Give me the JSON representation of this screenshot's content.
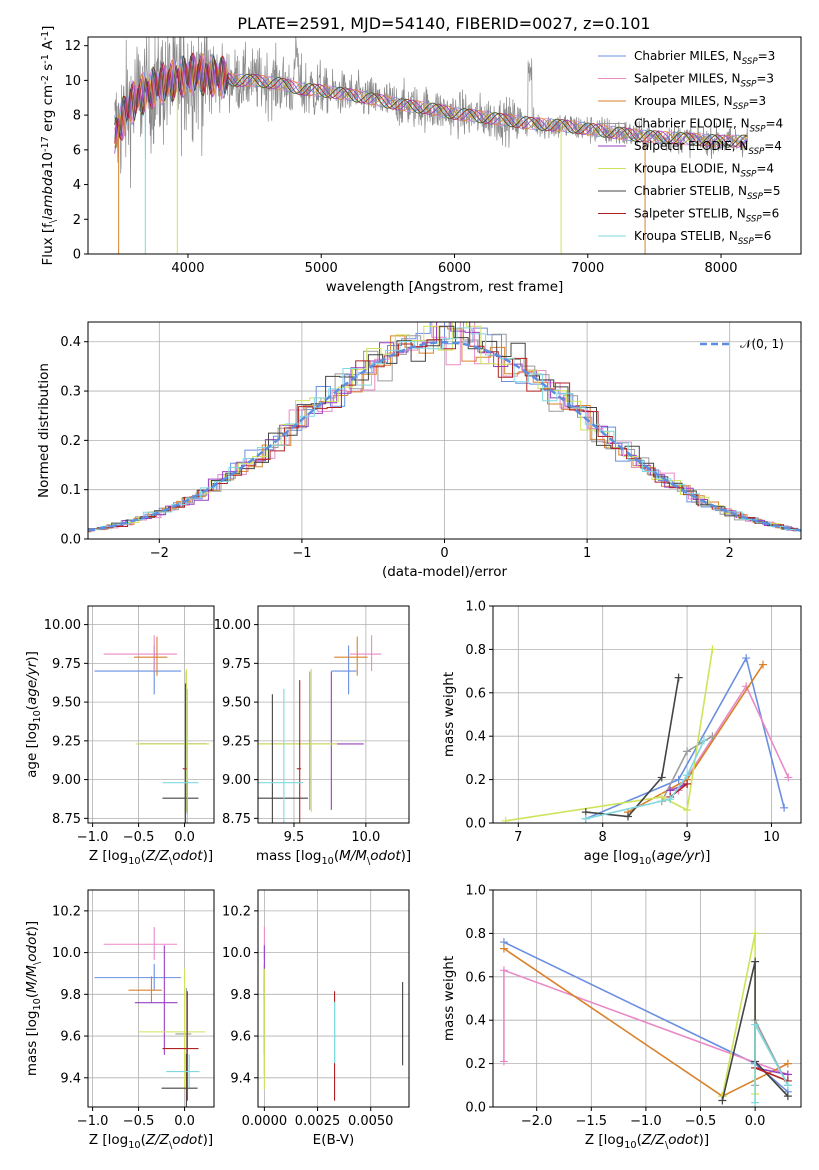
{
  "figure": {
    "title": "PLATE=2591, MJD=54140, FIBERID=0027, z=0.101",
    "series_colors": [
      "#6a8fe0",
      "#e98ac8",
      "#d9822b",
      "#9b9b9b",
      "#9a3fc4",
      "#cfe35a",
      "#444444",
      "#b22222",
      "#7fd9df"
    ]
  },
  "chart_data": [
    {
      "id": "spectrum",
      "type": "line",
      "title": "PLATE=2591, MJD=54140, FIBERID=0027, z=0.101",
      "xlabel": "wavelength [Angstrom, rest frame]",
      "ylabel": "Flux [f$_\\lambda$10$^{-17}$ erg cm$^{-2}$ s$^{-1}$ A$^{-1}$]",
      "xlim": [
        3250,
        8600
      ],
      "ylim": [
        0,
        12.5
      ],
      "xticks": [
        4000,
        5000,
        6000,
        7000,
        8000
      ],
      "yticks": [
        0,
        2,
        4,
        6,
        8,
        10,
        12
      ],
      "legend_position": "upper right",
      "continuum": {
        "x": [
          3450,
          3550,
          3650,
          3750,
          3850,
          3950,
          4050,
          4150,
          4250,
          4350,
          4500,
          4700,
          4850,
          5000,
          5200,
          5400,
          5600,
          5800,
          6000,
          6200,
          6400,
          6600,
          6800,
          7000,
          7200,
          7400,
          7600,
          7800,
          8000
        ],
        "y": [
          6.9,
          8.4,
          9.2,
          9.6,
          9.9,
          10.2,
          10.4,
          10.3,
          10.2,
          10.0,
          10.0,
          9.8,
          9.5,
          9.4,
          9.2,
          8.9,
          8.6,
          8.4,
          8.1,
          7.9,
          7.7,
          7.5,
          7.4,
          7.2,
          7.0,
          6.8,
          6.7,
          6.6,
          6.5
        ]
      },
      "series": [
        {
          "label": "Chabrier MILES, N$_{SSP}$=3"
        },
        {
          "label": "Salpeter MILES, N$_{SSP}$=3"
        },
        {
          "label": "Kroupa MILES, N$_{SSP}$=3"
        },
        {
          "label": "Chabrier ELODIE, N$_{SSP}$=4"
        },
        {
          "label": "Salpeter ELODIE, N$_{SSP}$=4"
        },
        {
          "label": "Kroupa ELODIE, N$_{SSP}$=4"
        },
        {
          "label": "Chabrier STELIB, N$_{SSP}$=5"
        },
        {
          "label": "Salpeter STELIB, N$_{SSP}$=6"
        },
        {
          "label": "Kroupa STELIB, N$_{SSP}$=6"
        }
      ]
    },
    {
      "id": "residuals",
      "type": "line",
      "xlabel": "(data-model)/error",
      "ylabel": "Normed distribution",
      "xlim": [
        -2.5,
        2.5
      ],
      "ylim": [
        0,
        0.44
      ],
      "xticks": [
        -2,
        -1,
        0,
        1,
        2
      ],
      "yticks": [
        0.0,
        0.1,
        0.2,
        0.3,
        0.4
      ],
      "grid": true,
      "legend": "$\\mathcal{N}(0,1)$",
      "legend_position": "upper right",
      "bin_width": 0.1
    },
    {
      "id": "age-vs-z",
      "type": "scatter",
      "xlabel": "Z [log$_{10}$($Z/Z_\\odot$)]",
      "ylabel": "age  [log$_{10}$($age/yr$)]",
      "xlim": [
        -1.05,
        0.32
      ],
      "ylim": [
        8.72,
        10.12
      ],
      "xticks": [
        -1.0,
        -0.5,
        0.0
      ],
      "yticks": [
        8.75,
        9.0,
        9.25,
        9.5,
        9.75,
        10.0
      ],
      "grid": true,
      "points": [
        {
          "x": -0.33,
          "y": 9.7,
          "xerr": 0.65,
          "yerr": 0.3,
          "c": 0
        },
        {
          "x": -0.33,
          "y": 9.81,
          "xerr": 0.55,
          "yerr": 0.22,
          "c": 1
        },
        {
          "x": -0.3,
          "y": 9.79,
          "xerr": 0.25,
          "yerr": 0.24,
          "c": 2
        },
        {
          "x": 0.02,
          "y": 9.23,
          "xerr": 0.5,
          "yerr": 0.85,
          "c": 3
        },
        {
          "x": 0.02,
          "y": 9.23,
          "xerr": 0.5,
          "yerr": 0.85,
          "c": 4
        },
        {
          "x": 0.02,
          "y": 9.23,
          "xerr": 0.55,
          "yerr": 0.88,
          "c": 5
        },
        {
          "x": 0.03,
          "y": 8.88,
          "xerr": 0.27,
          "yerr": 0.2,
          "c": 6
        },
        {
          "x": 0.01,
          "y": 9.07,
          "xerr": 0.03,
          "yerr": 1.0,
          "c": 7
        },
        {
          "x": 0.03,
          "y": 8.98,
          "xerr": 0.27,
          "yerr": 1.1,
          "c": 8
        }
      ]
    },
    {
      "id": "age-vs-mass",
      "type": "scatter",
      "xlabel": "mass [log$_{10}$($M/M_\\odot$)]",
      "ylabel": "",
      "xlim": [
        9.25,
        10.3
      ],
      "ylim": [
        8.72,
        10.12
      ],
      "xticks": [
        9.5,
        10.0
      ],
      "yticks": [
        8.75,
        9.0,
        9.25,
        9.5,
        9.75,
        10.0
      ],
      "grid": true,
      "points": [
        {
          "x": 9.88,
          "y": 9.7,
          "xerr": 0.12,
          "yerr": 0.3,
          "c": 0
        },
        {
          "x": 10.04,
          "y": 9.81,
          "xerr": 0.15,
          "yerr": 0.22,
          "c": 1
        },
        {
          "x": 9.94,
          "y": 9.79,
          "xerr": 0.16,
          "yerr": 0.24,
          "c": 2
        },
        {
          "x": 9.61,
          "y": 9.23,
          "xerr": 0.03,
          "yerr": 0.85,
          "c": 3
        },
        {
          "x": 9.76,
          "y": 9.23,
          "xerr": 0.5,
          "yerr": 0.85,
          "c": 4
        },
        {
          "x": 9.62,
          "y": 9.23,
          "xerr": 0.4,
          "yerr": 0.88,
          "c": 5
        },
        {
          "x": 9.35,
          "y": 8.88,
          "xerr": 0.55,
          "yerr": 1.22,
          "c": 6
        },
        {
          "x": 9.54,
          "y": 9.07,
          "xerr": 0.02,
          "yerr": 1.04,
          "c": 7
        },
        {
          "x": 9.43,
          "y": 8.98,
          "xerr": 0.3,
          "yerr": 1.1,
          "c": 8
        }
      ]
    },
    {
      "id": "weight-vs-age",
      "type": "line",
      "xlabel": "age  [log$_{10}$($age/yr$)]",
      "ylabel": "mass weight",
      "xlim": [
        6.7,
        10.35
      ],
      "ylim": [
        0,
        1.0
      ],
      "xticks": [
        7,
        8,
        9,
        10
      ],
      "yticks": [
        0.0,
        0.2,
        0.4,
        0.6,
        0.8,
        1.0
      ],
      "grid": true,
      "series": [
        {
          "c": 0,
          "x": [
            7.8,
            8.9,
            9.7,
            10.15
          ],
          "y": [
            0.02,
            0.2,
            0.76,
            0.07
          ]
        },
        {
          "c": 1,
          "x": [
            8.9,
            9.7,
            10.2
          ],
          "y": [
            0.15,
            0.63,
            0.21
          ]
        },
        {
          "c": 2,
          "x": [
            8.3,
            9.0,
            9.9
          ],
          "y": [
            0.05,
            0.2,
            0.73
          ]
        },
        {
          "c": 3,
          "x": [
            8.7,
            9.0,
            9.3
          ],
          "y": [
            0.1,
            0.33,
            0.4
          ]
        },
        {
          "c": 4,
          "x": [
            8.8,
            9.0
          ],
          "y": [
            0.15,
            0.18
          ]
        },
        {
          "c": 5,
          "x": [
            6.85,
            8.7,
            9.0,
            9.3
          ],
          "y": [
            0.01,
            0.12,
            0.06,
            0.8
          ]
        },
        {
          "c": 6,
          "x": [
            7.8,
            8.3,
            8.7,
            8.9
          ],
          "y": [
            0.05,
            0.03,
            0.21,
            0.67
          ]
        },
        {
          "c": 7,
          "x": [
            8.8,
            9.0
          ],
          "y": [
            0.12,
            0.18
          ]
        },
        {
          "c": 8,
          "x": [
            7.8,
            8.8,
            9.0,
            9.2
          ],
          "y": [
            0.02,
            0.11,
            0.22,
            0.38
          ]
        }
      ]
    },
    {
      "id": "mass-vs-z",
      "type": "scatter",
      "xlabel": "Z [log$_{10}$($Z/Z_\\odot$)]",
      "ylabel": "mass [log$_{10}$($M/M_\\odot$)]",
      "xlim": [
        -1.05,
        0.32
      ],
      "ylim": [
        9.26,
        10.3
      ],
      "xticks": [
        -1.0,
        -0.5,
        0.0
      ],
      "yticks": [
        9.4,
        9.6,
        9.8,
        10.0,
        10.2
      ],
      "grid": true,
      "points": [
        {
          "x": -0.33,
          "y": 9.88,
          "xerr": 0.65,
          "yerr": 0.12,
          "c": 0
        },
        {
          "x": -0.33,
          "y": 10.04,
          "xerr": 0.55,
          "yerr": 0.15,
          "c": 1
        },
        {
          "x": -0.36,
          "y": 9.82,
          "xerr": 0.25,
          "yerr": 0.12,
          "c": 2
        },
        {
          "x": 0.02,
          "y": 9.61,
          "xerr": 0.12,
          "yerr": 0.4,
          "c": 3
        },
        {
          "x": -0.22,
          "y": 9.76,
          "xerr": 0.32,
          "yerr": 0.5,
          "c": 4
        },
        {
          "x": 0.0,
          "y": 9.62,
          "xerr": 0.5,
          "yerr": 0.55,
          "c": 5
        },
        {
          "x": 0.02,
          "y": 9.35,
          "xerr": 0.27,
          "yerr": 0.3,
          "c": 6
        },
        {
          "x": 0.03,
          "y": 9.54,
          "xerr": 0.27,
          "yerr": 0.5,
          "c": 7
        },
        {
          "x": 0.05,
          "y": 9.43,
          "xerr": 0.25,
          "yerr": 0.15,
          "c": 8
        }
      ]
    },
    {
      "id": "mass-vs-ebv",
      "type": "scatter",
      "xlabel": "E(B-V)",
      "ylabel": "",
      "xlim": [
        -0.0003,
        0.0068
      ],
      "ylim": [
        9.26,
        10.3
      ],
      "xticks": [
        0.0,
        0.0025,
        0.005
      ],
      "xticklabels": [
        "0.0000",
        "0.0025",
        "0.0050"
      ],
      "yticks": [
        9.4,
        9.6,
        9.8,
        10.0,
        10.2
      ],
      "grid": true,
      "points": [
        {
          "x": 0.0,
          "y": 9.88,
          "xerr": 0,
          "yerr": 0.12,
          "c": 0
        },
        {
          "x": 0.0,
          "y": 10.04,
          "xerr": 0,
          "yerr": 0.15,
          "c": 1
        },
        {
          "x": 0.0,
          "y": 9.82,
          "xerr": 0,
          "yerr": 0.12,
          "c": 2
        },
        {
          "x": 0.0,
          "y": 9.61,
          "xerr": 0,
          "yerr": 0.4,
          "c": 3
        },
        {
          "x": 0.0,
          "y": 9.76,
          "xerr": 0,
          "yerr": 0.5,
          "c": 4
        },
        {
          "x": 0.0,
          "y": 9.62,
          "xerr": 0,
          "yerr": 0.55,
          "c": 5
        },
        {
          "x": 0.0065,
          "y": 9.65,
          "xerr": 0,
          "yerr": 0.38,
          "c": 6
        },
        {
          "x": 0.0033,
          "y": 9.54,
          "xerr": 0,
          "yerr": 0.5,
          "c": 7
        },
        {
          "x": 0.0033,
          "y": 9.61,
          "xerr": 0,
          "yerr": 0.28,
          "c": 8
        }
      ]
    },
    {
      "id": "weight-vs-z",
      "type": "line",
      "xlabel": "Z [log$_{10}$($Z/Z_\\odot$)]",
      "ylabel": "mass weight",
      "xlim": [
        -2.4,
        0.42
      ],
      "ylim": [
        0,
        1.0
      ],
      "xticks": [
        -2.0,
        -1.5,
        -1.0,
        -0.5,
        0.0
      ],
      "yticks": [
        0.0,
        0.2,
        0.4,
        0.6,
        0.8,
        1.0
      ],
      "grid": true,
      "series": [
        {
          "c": 0,
          "x": [
            -2.3,
            0.0,
            0.3
          ],
          "y": [
            0.76,
            0.2,
            0.07
          ]
        },
        {
          "c": 1,
          "x": [
            -2.3,
            -2.3,
            0.3
          ],
          "y": [
            0.21,
            0.63,
            0.15
          ]
        },
        {
          "c": 2,
          "x": [
            -2.3,
            -0.3,
            0.3
          ],
          "y": [
            0.73,
            0.05,
            0.2
          ]
        },
        {
          "c": 3,
          "x": [
            0.0,
            0.0,
            0.3
          ],
          "y": [
            0.1,
            0.4,
            0.1
          ]
        },
        {
          "c": 4,
          "x": [
            0.0,
            0.3
          ],
          "y": [
            0.18,
            0.15
          ]
        },
        {
          "c": 5,
          "x": [
            -0.3,
            0.0,
            0.0
          ],
          "y": [
            0.05,
            0.8,
            0.06
          ]
        },
        {
          "c": 6,
          "x": [
            -0.3,
            0.0,
            0.0,
            0.3
          ],
          "y": [
            0.03,
            0.67,
            0.21,
            0.05
          ]
        },
        {
          "c": 7,
          "x": [
            0.0,
            0.3
          ],
          "y": [
            0.18,
            0.12
          ]
        },
        {
          "c": 8,
          "x": [
            0.0,
            0.0,
            0.3
          ],
          "y": [
            0.02,
            0.38,
            0.1
          ]
        }
      ]
    }
  ]
}
